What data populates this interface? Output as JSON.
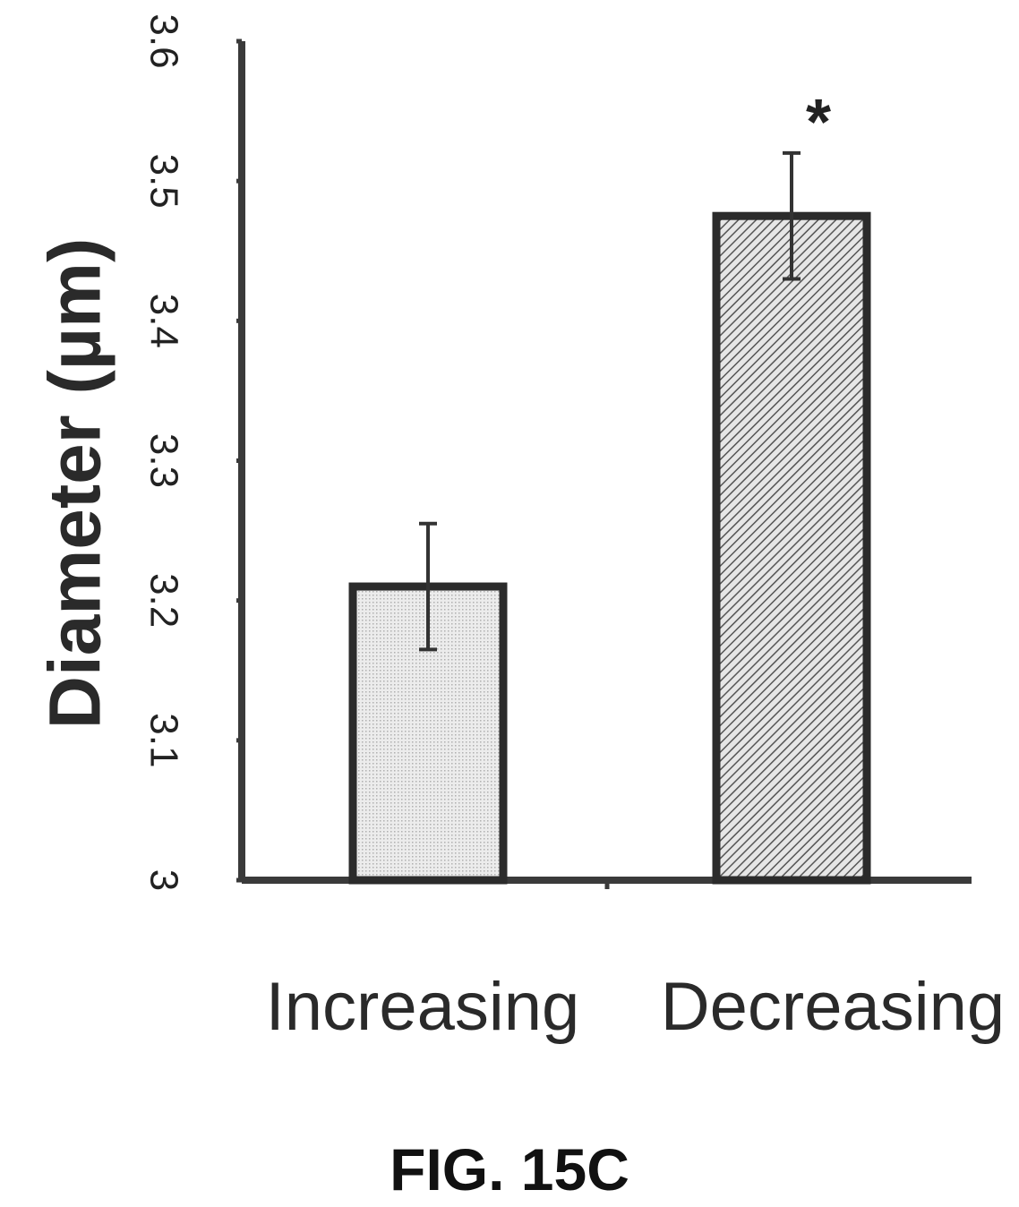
{
  "figure_label": "FIG. 15C",
  "chart_data": {
    "type": "bar",
    "categories": [
      "Increasing",
      "Decreasing"
    ],
    "values": [
      3.21,
      3.475
    ],
    "error": [
      0.045,
      0.045
    ],
    "annotations": [
      "",
      "*"
    ],
    "ylabel": "Diameter (µm)",
    "xlabel": "",
    "ylim": [
      3.0,
      3.6
    ],
    "yticks": [
      "3",
      "3.1",
      "3.2",
      "3.3",
      "3.4",
      "3.5",
      "3.6"
    ],
    "grid": false,
    "fills": [
      "dotted-light",
      "hatched-dark"
    ],
    "colors": {
      "axis": "#3a3a3a",
      "bar_edge": "#2b2b2b",
      "light_fill": "#e2e2e2",
      "hatch": "#555555"
    }
  }
}
